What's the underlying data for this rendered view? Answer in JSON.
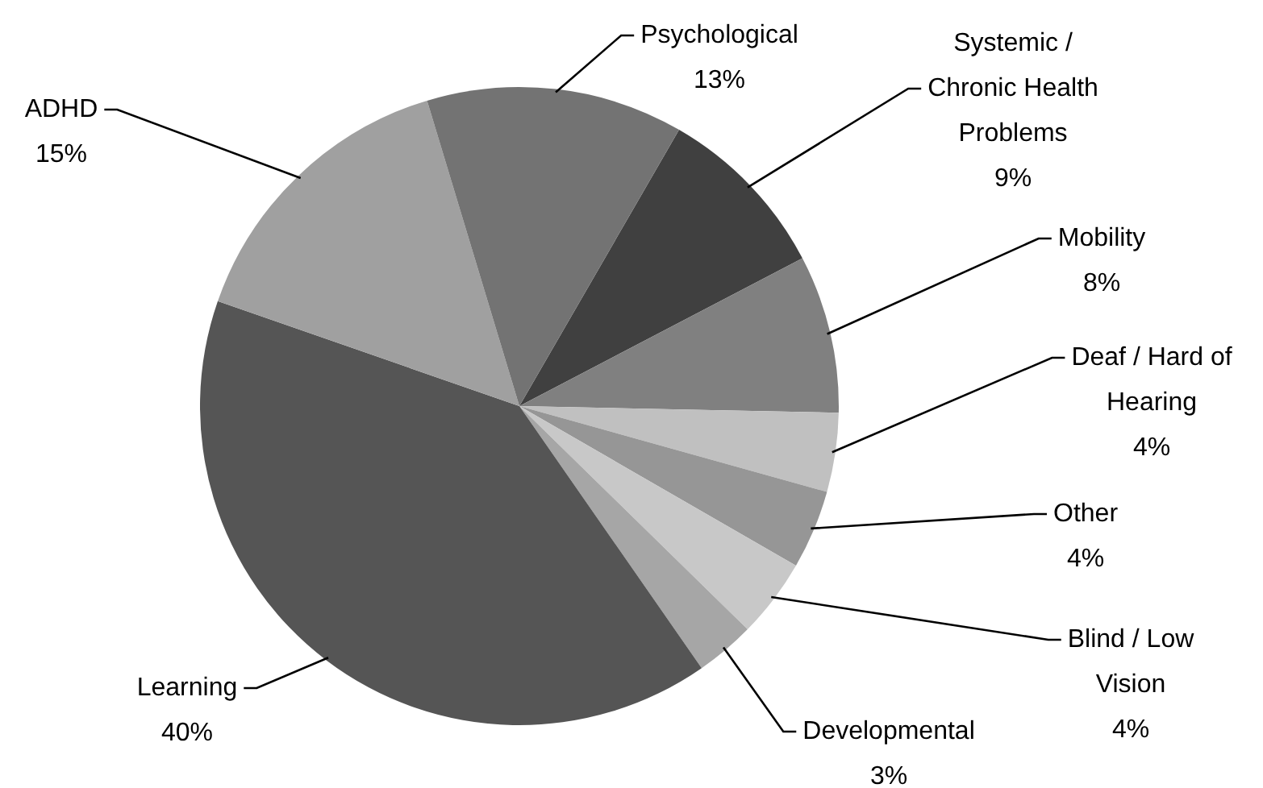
{
  "chart_data": {
    "type": "pie",
    "categories": [
      "Systemic / Chronic Health Problems",
      "Mobility",
      "Deaf / Hard of Hearing",
      "Other",
      "Blind / Low Vision",
      "Developmental",
      "Learning",
      "ADHD",
      "Psychological"
    ],
    "values": [
      9,
      8,
      4,
      4,
      4,
      3,
      40,
      15,
      13
    ],
    "value_labels": [
      "9%",
      "8%",
      "4%",
      "4%",
      "4%",
      "3%",
      "40%",
      "15%",
      "13%"
    ],
    "colors": [
      "#404040",
      "#808080",
      "#c0c0c0",
      "#969696",
      "#c8c8c8",
      "#a6a6a6",
      "#555555",
      "#a0a0a0",
      "#737373"
    ]
  }
}
